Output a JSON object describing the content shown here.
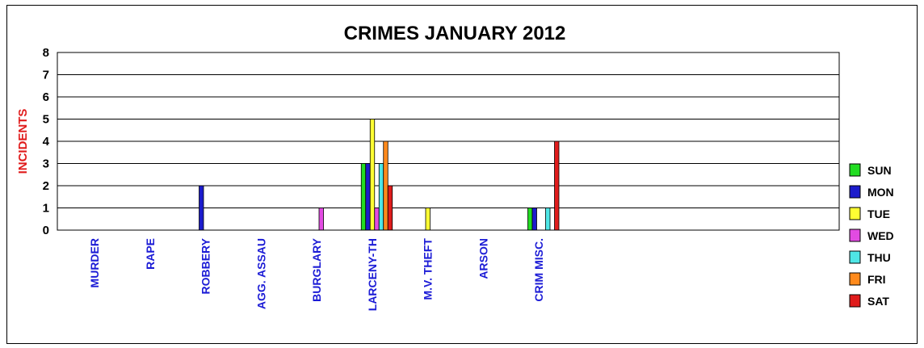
{
  "chart_data": {
    "type": "bar",
    "title": "CRIMES JANUARY 2012",
    "ylabel": "INCIDENTS",
    "xlabel": "",
    "ylim": [
      0,
      8
    ],
    "yticks": [
      "0",
      "1",
      "2",
      "3",
      "4",
      "5",
      "6",
      "7",
      "8"
    ],
    "grid": true,
    "legend_position": "right",
    "categories": [
      "MURDER",
      "RAPE",
      "ROBBERY",
      "AGG. ASSAU",
      "BURGLARY",
      "LARCENY-TH",
      "M.V. THEFT",
      "ARSON",
      "CRIM MISC."
    ],
    "series": [
      {
        "name": "SUN",
        "color": "#22dd22",
        "values": [
          0,
          0,
          0,
          0,
          0,
          3,
          0,
          0,
          1
        ]
      },
      {
        "name": "MON",
        "color": "#1c1ccc",
        "values": [
          0,
          0,
          2,
          0,
          0,
          3,
          0,
          0,
          1
        ]
      },
      {
        "name": "TUE",
        "color": "#ffff33",
        "values": [
          0,
          0,
          0,
          0,
          0,
          5,
          1,
          0,
          0
        ]
      },
      {
        "name": "WED",
        "color": "#e24be2",
        "values": [
          0,
          0,
          0,
          0,
          1,
          1,
          0,
          0,
          0
        ]
      },
      {
        "name": "THU",
        "color": "#4fe6e6",
        "values": [
          0,
          0,
          0,
          0,
          0,
          3,
          0,
          0,
          1
        ]
      },
      {
        "name": "FRI",
        "color": "#ff8a1c",
        "values": [
          0,
          0,
          0,
          0,
          0,
          4,
          0,
          0,
          0
        ]
      },
      {
        "name": "SAT",
        "color": "#e01c1c",
        "values": [
          0,
          0,
          0,
          0,
          0,
          2,
          0,
          0,
          4
        ]
      }
    ]
  },
  "colors": {
    "title": "#000000",
    "ylabel": "#e01c1c",
    "category_labels": "#1c1cd6",
    "tick_labels": "#000000"
  }
}
